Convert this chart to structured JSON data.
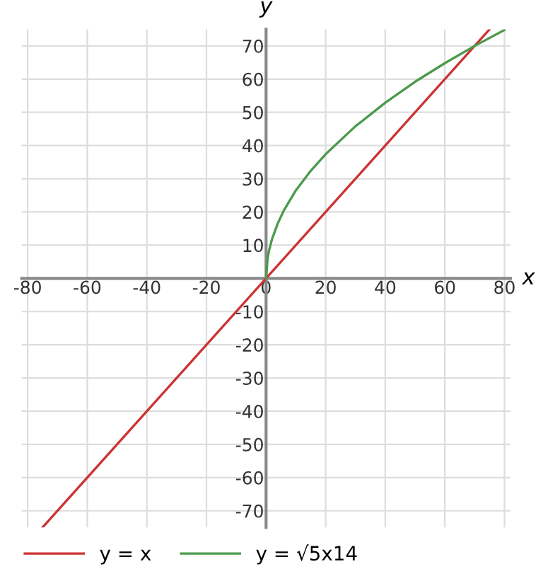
{
  "chart_data": {
    "type": "line",
    "xlabel": "x",
    "ylabel": "y",
    "xlim": [
      -82,
      82
    ],
    "ylim": [
      -75,
      75
    ],
    "xticks": [
      -80,
      -60,
      -40,
      -20,
      0,
      20,
      40,
      60,
      80
    ],
    "yticks": [
      -70,
      -60,
      -50,
      -40,
      -30,
      -20,
      -10,
      10,
      20,
      30,
      40,
      50,
      60,
      70
    ],
    "grid": true,
    "legend": "bottom",
    "marker": "none",
    "line_style": "solid",
    "series": [
      {
        "name": "y = x",
        "color": "#cc3333",
        "x": [
          -75,
          75
        ],
        "values": [
          -75,
          75
        ]
      },
      {
        "name": "y = √5x14",
        "color": "#4c9a4c",
        "x": [
          0,
          0.5,
          1,
          2,
          4,
          6,
          10,
          15,
          20,
          30,
          40,
          50,
          60,
          70,
          80
        ],
        "values": [
          0,
          5.9,
          8.4,
          11.8,
          16.7,
          20.5,
          26.5,
          32.4,
          37.4,
          45.8,
          52.9,
          59.2,
          64.8,
          70,
          74.8
        ]
      }
    ]
  }
}
